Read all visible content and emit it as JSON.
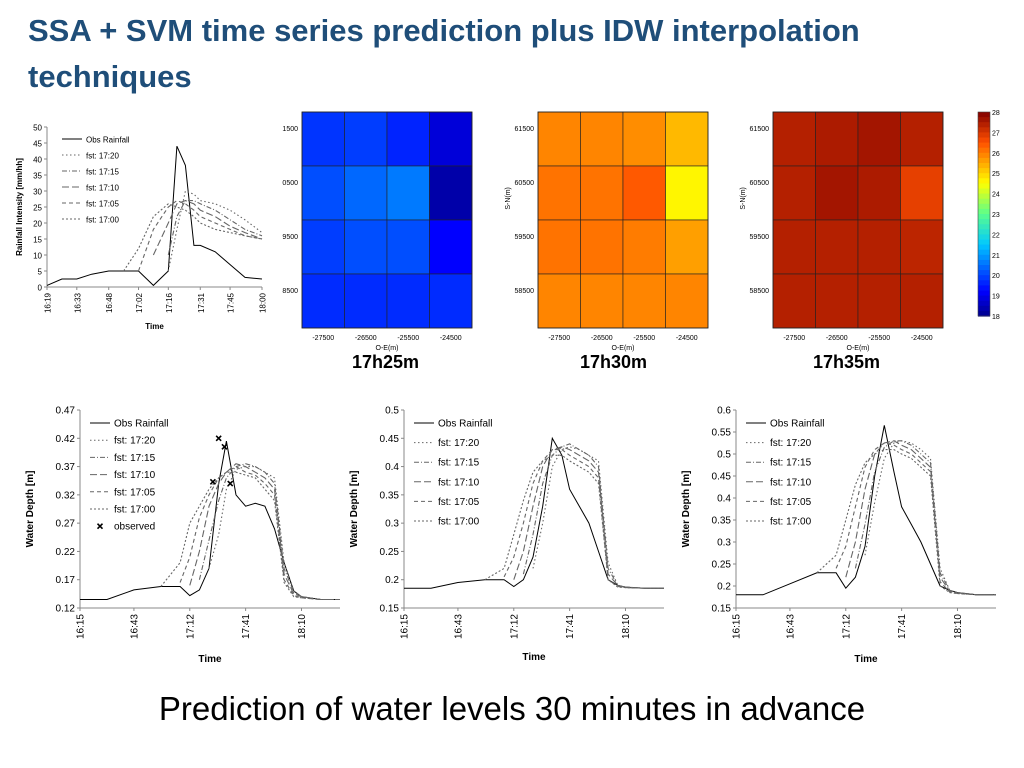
{
  "slide": {
    "title": "SSA + SVM time series prediction plus IDW interpolation techniques",
    "caption": "Prediction of water levels 30 minutes in advance",
    "title_color": "#1f4e79"
  },
  "rainfall_chart": {
    "type": "line",
    "ylabel": "Rainfall Intensity [mm/hh]",
    "xlabel": "Time",
    "ylim": [
      0,
      50
    ],
    "yticks": [
      0,
      5,
      10,
      15,
      20,
      25,
      30,
      35,
      40,
      45,
      50
    ],
    "xticks": [
      "16:19",
      "16:33",
      "16:48",
      "17:02",
      "17:16",
      "17:31",
      "17:45",
      "18:00"
    ],
    "legend": [
      "Obs Rainfall",
      "fst: 17:20",
      "fst: 17:15",
      "fst: 17:10",
      "fst: 17:05",
      "fst: 17:00"
    ]
  },
  "heatmaps": {
    "xlabel": "O-E(m)",
    "ylabel": "S-N(m)",
    "xticks": [
      "-27500",
      "-26500",
      "-25500",
      "-24500"
    ],
    "yticks_first": [
      "1500",
      "0500",
      "9500",
      "8500"
    ],
    "yticks": [
      "61500",
      "60500",
      "59500",
      "58500"
    ],
    "colorbar_ticks": [
      "28",
      "27",
      "26",
      "25",
      "24",
      "23",
      "22",
      "21",
      "20",
      "19",
      "18"
    ],
    "colorbar_range": [
      18,
      28
    ],
    "maps": [
      {
        "label": "17h25m",
        "values": [
          [
            19.8,
            19.9,
            19.6,
            18.8
          ],
          [
            20.1,
            20.4,
            20.6,
            18.3
          ],
          [
            19.9,
            20.1,
            20.1,
            19.2
          ],
          [
            19.7,
            19.7,
            19.7,
            19.7
          ]
        ]
      },
      {
        "label": "17h30m",
        "values": [
          [
            25.9,
            25.9,
            25.8,
            25.3
          ],
          [
            26.1,
            26.1,
            26.4,
            24.6
          ],
          [
            26.1,
            26.1,
            26.0,
            25.6
          ],
          [
            25.9,
            25.9,
            25.9,
            25.9
          ]
        ]
      },
      {
        "label": "17h35m",
        "values": [
          [
            27.4,
            27.5,
            27.6,
            27.4
          ],
          [
            27.4,
            27.6,
            27.5,
            26.8
          ],
          [
            27.4,
            27.4,
            27.4,
            27.3
          ],
          [
            27.4,
            27.4,
            27.4,
            27.4
          ]
        ]
      }
    ]
  },
  "water_charts": {
    "xlabel": "Time",
    "ylabel": "Water Depth [m]",
    "xticks": [
      "16:15",
      "16:43",
      "17:12",
      "17:41",
      "18:10"
    ],
    "panels": [
      {
        "ylim": [
          0.12,
          0.47
        ],
        "yticks": [
          "0.12",
          "0.17",
          "0.22",
          "0.27",
          "0.32",
          "0.37",
          "0.42",
          "0.47"
        ],
        "legend": [
          "Obs Rainfall",
          "fst: 17:20",
          "fst: 17:15",
          "fst: 17:10",
          "fst: 17:05",
          "fst: 17:00",
          "observed"
        ]
      },
      {
        "ylim": [
          0.15,
          0.5
        ],
        "yticks": [
          "0.15",
          "0.2",
          "0.25",
          "0.3",
          "0.35",
          "0.4",
          "0.45",
          "0.5"
        ],
        "legend": [
          "Obs Rainfall",
          "fst: 17:20",
          "fst: 17:15",
          "fst: 17:10",
          "fst: 17:05",
          "fst: 17:00"
        ]
      },
      {
        "ylim": [
          0.15,
          0.6
        ],
        "yticks": [
          "0.15",
          "0.2",
          "0.25",
          "0.3",
          "0.35",
          "0.4",
          "0.45",
          "0.5",
          "0.55",
          "0.6"
        ],
        "legend": [
          "Obs Rainfall",
          "fst: 17:20",
          "fst: 17:15",
          "fst: 17:10",
          "fst: 17:05",
          "fst: 17:00"
        ]
      }
    ]
  },
  "chart_data": [
    {
      "type": "line",
      "xlabel": "Time",
      "ylabel": "Rainfall Intensity [mm/hh]",
      "ylim": [
        0,
        50
      ],
      "x": [
        "16:19",
        "16:26",
        "16:33",
        "16:40",
        "16:48",
        "16:55",
        "17:02",
        "17:09",
        "17:16",
        "17:20",
        "17:24",
        "17:28",
        "17:31",
        "17:38",
        "17:45",
        "17:52",
        "18:00"
      ],
      "series": [
        {
          "name": "Obs Rainfall",
          "values": [
            0.5,
            2.5,
            2.5,
            4,
            5,
            5,
            5,
            0.5,
            5,
            44,
            38,
            13,
            13,
            11,
            7,
            3,
            2.5
          ]
        },
        {
          "name": "fst: 17:20",
          "values": [
            null,
            null,
            null,
            null,
            null,
            null,
            null,
            null,
            5,
            18,
            30,
            29,
            27,
            26,
            24,
            21,
            17
          ]
        },
        {
          "name": "fst: 17:15",
          "values": [
            null,
            null,
            null,
            null,
            null,
            null,
            null,
            null,
            10,
            22,
            27,
            27,
            26,
            24,
            21,
            18,
            16
          ]
        },
        {
          "name": "fst: 17:10",
          "values": [
            null,
            null,
            null,
            null,
            null,
            null,
            null,
            10,
            20,
            26,
            27,
            26,
            24,
            22,
            19,
            17,
            15
          ]
        },
        {
          "name": "fst: 17:05",
          "values": [
            null,
            null,
            null,
            null,
            null,
            null,
            5,
            18,
            25,
            27,
            26,
            24,
            22,
            20,
            18,
            16,
            15
          ]
        },
        {
          "name": "fst: 17:00",
          "values": [
            null,
            null,
            null,
            null,
            null,
            5,
            12,
            22,
            26,
            25,
            24,
            22,
            20,
            18,
            17,
            16,
            15
          ]
        }
      ]
    },
    {
      "type": "heatmap",
      "title": "17h25m",
      "xlabel": "O-E(m)",
      "x": [
        "-27500",
        "-26500",
        "-25500",
        "-24500"
      ],
      "y": [
        "1500",
        "0500",
        "9500",
        "8500"
      ],
      "values": [
        [
          19.8,
          19.9,
          19.6,
          18.8
        ],
        [
          20.1,
          20.4,
          20.6,
          18.3
        ],
        [
          19.9,
          20.1,
          20.1,
          19.2
        ],
        [
          19.7,
          19.7,
          19.7,
          19.7
        ]
      ]
    },
    {
      "type": "heatmap",
      "title": "17h30m",
      "xlabel": "O-E(m)",
      "ylabel": "S-N(m)",
      "x": [
        "-27500",
        "-26500",
        "-25500",
        "-24500"
      ],
      "y": [
        "61500",
        "60500",
        "59500",
        "58500"
      ],
      "values": [
        [
          25.9,
          25.9,
          25.8,
          25.3
        ],
        [
          26.1,
          26.1,
          26.4,
          24.6
        ],
        [
          26.1,
          26.1,
          26.0,
          25.6
        ],
        [
          25.9,
          25.9,
          25.9,
          25.9
        ]
      ]
    },
    {
      "type": "heatmap",
      "title": "17h35m",
      "xlabel": "O-E(m)",
      "ylabel": "S-N(m)",
      "x": [
        "-27500",
        "-26500",
        "-25500",
        "-24500"
      ],
      "y": [
        "61500",
        "60500",
        "59500",
        "58500"
      ],
      "values": [
        [
          27.4,
          27.5,
          27.6,
          27.4
        ],
        [
          27.4,
          27.6,
          27.5,
          26.8
        ],
        [
          27.4,
          27.4,
          27.4,
          27.3
        ],
        [
          27.4,
          27.4,
          27.4,
          27.4
        ]
      ]
    },
    {
      "type": "line",
      "xlabel": "Time",
      "ylabel": "Water Depth [m]",
      "ylim": [
        0.12,
        0.47
      ],
      "x": [
        "16:15",
        "16:29",
        "16:43",
        "16:57",
        "17:07",
        "17:12",
        "17:17",
        "17:22",
        "17:27",
        "17:31",
        "17:36",
        "17:41",
        "17:46",
        "17:51",
        "17:56",
        "18:01",
        "18:06",
        "18:10",
        "18:20",
        "18:30"
      ],
      "series": [
        {
          "name": "Obs Rainfall",
          "values": [
            0.135,
            0.135,
            0.152,
            0.158,
            0.158,
            0.142,
            0.152,
            0.19,
            0.34,
            0.415,
            0.32,
            0.3,
            0.305,
            0.3,
            0.26,
            0.2,
            0.15,
            0.14,
            0.135,
            0.135
          ]
        },
        {
          "name": "fst: 17:20",
          "values": [
            null,
            null,
            null,
            null,
            null,
            null,
            null,
            0.19,
            0.25,
            0.33,
            0.365,
            0.37,
            0.37,
            0.36,
            0.35,
            0.2,
            0.15,
            0.14,
            0.135,
            0.135
          ]
        },
        {
          "name": "fst: 17:15",
          "values": [
            null,
            null,
            null,
            null,
            null,
            null,
            0.17,
            0.24,
            0.31,
            0.35,
            0.37,
            0.375,
            0.37,
            0.36,
            0.34,
            0.19,
            0.148,
            0.14,
            0.135,
            0.135
          ]
        },
        {
          "name": "fst: 17:10",
          "values": [
            null,
            null,
            null,
            null,
            null,
            0.16,
            0.22,
            0.3,
            0.34,
            0.36,
            0.375,
            0.37,
            0.36,
            0.35,
            0.33,
            0.18,
            0.145,
            0.14,
            0.135,
            0.135
          ]
        },
        {
          "name": "fst: 17:05",
          "values": [
            null,
            null,
            null,
            null,
            0.165,
            0.21,
            0.28,
            0.32,
            0.35,
            0.36,
            0.37,
            0.36,
            0.355,
            0.34,
            0.32,
            0.17,
            0.142,
            0.138,
            0.135,
            0.135
          ]
        },
        {
          "name": "fst: 17:00",
          "values": [
            null,
            null,
            null,
            0.158,
            0.2,
            0.27,
            0.3,
            0.33,
            0.35,
            0.36,
            0.36,
            0.355,
            0.35,
            0.33,
            0.31,
            0.165,
            0.14,
            0.138,
            0.135,
            0.135
          ]
        },
        {
          "name": "observed",
          "points": [
            [
              "17:24",
              0.343
            ],
            [
              "17:27",
              0.42
            ],
            [
              "17:30",
              0.405
            ],
            [
              "17:33",
              0.34
            ]
          ]
        }
      ]
    },
    {
      "type": "line",
      "xlabel": "Time",
      "ylabel": "Water Depth [m]",
      "ylim": [
        0.15,
        0.5
      ],
      "x": [
        "16:15",
        "16:29",
        "16:43",
        "16:57",
        "17:07",
        "17:12",
        "17:17",
        "17:22",
        "17:27",
        "17:32",
        "17:37",
        "17:41",
        "17:46",
        "17:51",
        "17:56",
        "18:01",
        "18:06",
        "18:10",
        "18:20",
        "18:30"
      ],
      "series": [
        {
          "name": "Obs Rainfall",
          "values": [
            0.185,
            0.185,
            0.195,
            0.2,
            0.2,
            0.188,
            0.2,
            0.24,
            0.33,
            0.45,
            0.42,
            0.36,
            0.33,
            0.3,
            0.25,
            0.2,
            0.19,
            0.187,
            0.185,
            0.185
          ]
        },
        {
          "name": "fst: 17:20",
          "values": [
            null,
            null,
            null,
            null,
            null,
            null,
            null,
            0.22,
            0.3,
            0.4,
            0.43,
            0.435,
            0.43,
            0.42,
            0.41,
            0.23,
            0.19,
            0.187,
            0.185,
            0.185
          ]
        },
        {
          "name": "fst: 17:15",
          "values": [
            null,
            null,
            null,
            null,
            null,
            null,
            0.21,
            0.28,
            0.37,
            0.42,
            0.435,
            0.44,
            0.43,
            0.42,
            0.4,
            0.22,
            0.19,
            0.187,
            0.185,
            0.185
          ]
        },
        {
          "name": "fst: 17:10",
          "values": [
            null,
            null,
            null,
            null,
            null,
            0.2,
            0.25,
            0.33,
            0.4,
            0.43,
            0.435,
            0.43,
            0.42,
            0.41,
            0.39,
            0.21,
            0.19,
            0.186,
            0.185,
            0.185
          ]
        },
        {
          "name": "fst: 17:05",
          "values": [
            null,
            null,
            null,
            null,
            0.205,
            0.24,
            0.3,
            0.37,
            0.41,
            0.43,
            0.43,
            0.42,
            0.41,
            0.4,
            0.38,
            0.2,
            0.188,
            0.186,
            0.185,
            0.185
          ]
        },
        {
          "name": "fst: 17:00",
          "values": [
            null,
            null,
            null,
            0.2,
            0.22,
            0.28,
            0.34,
            0.39,
            0.41,
            0.42,
            0.42,
            0.41,
            0.4,
            0.39,
            0.37,
            0.2,
            0.187,
            0.186,
            0.185,
            0.185
          ]
        }
      ]
    },
    {
      "type": "line",
      "xlabel": "Time",
      "ylabel": "Water Depth [m]",
      "ylim": [
        0.15,
        0.6
      ],
      "x": [
        "16:15",
        "16:29",
        "16:43",
        "16:57",
        "17:07",
        "17:12",
        "17:17",
        "17:22",
        "17:27",
        "17:32",
        "17:37",
        "17:41",
        "17:46",
        "17:51",
        "17:56",
        "18:01",
        "18:06",
        "18:10",
        "18:20",
        "18:30"
      ],
      "series": [
        {
          "name": "Obs Rainfall",
          "values": [
            0.18,
            0.18,
            0.205,
            0.23,
            0.23,
            0.195,
            0.22,
            0.29,
            0.45,
            0.565,
            0.46,
            0.38,
            0.34,
            0.3,
            0.25,
            0.2,
            0.19,
            0.185,
            0.18,
            0.18
          ]
        },
        {
          "name": "fst: 17:20",
          "values": [
            null,
            null,
            null,
            null,
            null,
            null,
            null,
            0.27,
            0.39,
            0.49,
            0.525,
            0.53,
            0.525,
            0.51,
            0.49,
            0.24,
            0.19,
            0.185,
            0.18,
            0.18
          ]
        },
        {
          "name": "fst: 17:15",
          "values": [
            null,
            null,
            null,
            null,
            null,
            null,
            0.24,
            0.34,
            0.46,
            0.515,
            0.53,
            0.53,
            0.52,
            0.5,
            0.48,
            0.23,
            0.19,
            0.185,
            0.18,
            0.18
          ]
        },
        {
          "name": "fst: 17:10",
          "values": [
            null,
            null,
            null,
            null,
            null,
            0.22,
            0.3,
            0.42,
            0.5,
            0.525,
            0.53,
            0.52,
            0.51,
            0.49,
            0.47,
            0.22,
            0.188,
            0.184,
            0.18,
            0.18
          ]
        },
        {
          "name": "fst: 17:05",
          "values": [
            null,
            null,
            null,
            null,
            0.24,
            0.29,
            0.38,
            0.47,
            0.51,
            0.525,
            0.52,
            0.51,
            0.5,
            0.48,
            0.46,
            0.21,
            0.186,
            0.183,
            0.18,
            0.18
          ]
        },
        {
          "name": "fst: 17:00",
          "values": [
            null,
            null,
            null,
            0.23,
            0.27,
            0.35,
            0.43,
            0.48,
            0.5,
            0.51,
            0.51,
            0.5,
            0.49,
            0.47,
            0.45,
            0.2,
            0.185,
            0.183,
            0.18,
            0.18
          ]
        }
      ]
    }
  ]
}
